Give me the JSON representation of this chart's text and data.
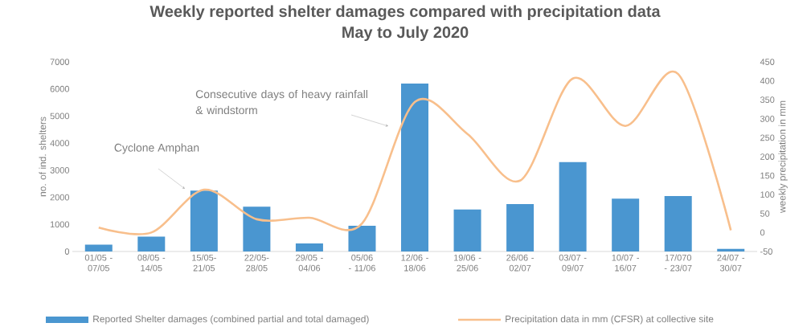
{
  "chart_data": {
    "type": "bar",
    "title": "Weekly reported shelter damages compared with precipitation data",
    "subtitle": "May to July 2020",
    "categories": [
      "01/05 - 07/05",
      "08/05 - 14/05",
      "15/05-21/05",
      "22/05-28/05",
      "29/05 - 04/06",
      "05/06 - 11/06",
      "12/06 - 18/06",
      "19/06 - 25/06",
      "26/06 - 02/07",
      "03/07 - 09/07",
      "10/07 - 16/07",
      "17/070 - 23/07",
      "24/07 - 30/07"
    ],
    "series": [
      {
        "name": "Reported Shelter damages (combined partial and total damaged)",
        "color": "#4a96d0",
        "values": [
          250,
          550,
          2250,
          1650,
          300,
          950,
          6200,
          1550,
          1750,
          3300,
          1950,
          2050,
          100
        ]
      },
      {
        "name": "Precipitation data in mm (CFSR) at collective site",
        "type": "line",
        "axis": "y2",
        "color": "#f8bf8c",
        "values": [
          13,
          0,
          113,
          35,
          39,
          24,
          344,
          260,
          137,
          406,
          281,
          418,
          6
        ]
      }
    ],
    "ylabel": "no. of ind. shelters",
    "y2label": "weekly precipitation in mm",
    "ylim": [
      0,
      7000
    ],
    "yticks": [
      0,
      1000,
      2000,
      3000,
      4000,
      5000,
      6000,
      7000
    ],
    "y2lim": [
      -50,
      450
    ],
    "y2ticks": [
      -50,
      0,
      50,
      100,
      150,
      200,
      250,
      300,
      350,
      400,
      450
    ],
    "annotations": [
      "Cyclone Amphan",
      "Consecutive days of heavy rainfall & windstorm"
    ],
    "legend": "bottom"
  }
}
